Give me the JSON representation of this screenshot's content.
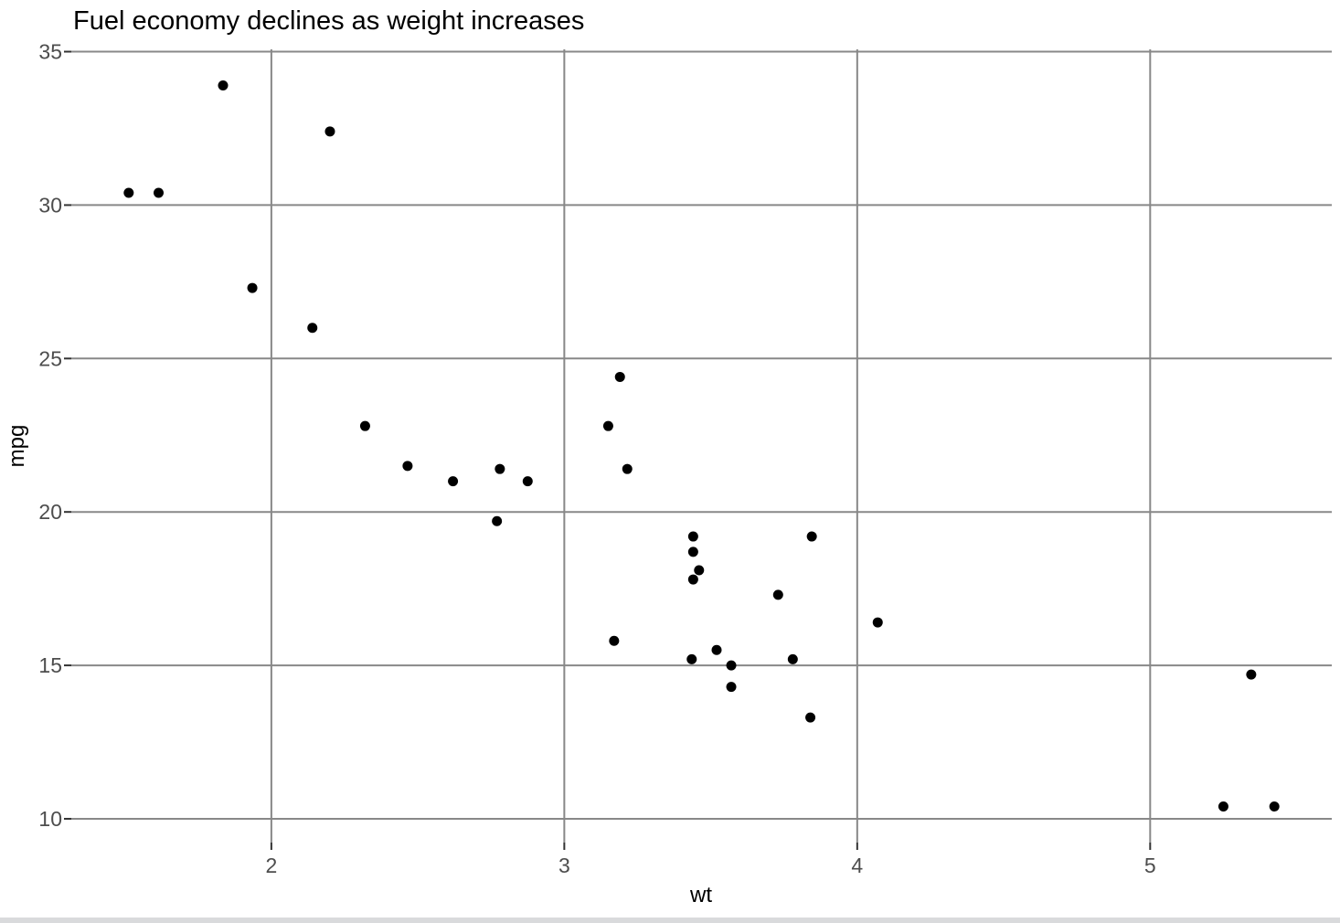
{
  "window": {
    "background": "#ffffff",
    "bottom_border_color": "#d9dadc"
  },
  "chart_data": {
    "type": "scatter",
    "title": "Fuel economy declines as weight increases",
    "xlabel": "wt",
    "ylabel": "mpg",
    "x_ticks": [
      2,
      3,
      4,
      5
    ],
    "y_ticks": [
      10,
      15,
      20,
      25,
      30,
      35
    ],
    "xlim": [
      1.317,
      5.62
    ],
    "ylim": [
      9.225,
      35.075
    ],
    "grid": true,
    "legend": "none",
    "point_color": "#000000",
    "point_radius": 5.5,
    "grid_color": "#888888",
    "tick_color": "#333333",
    "tick_label_color": "#4d4d4d",
    "title_color": "#000000",
    "points": [
      [
        2.62,
        21.0
      ],
      [
        2.875,
        21.0
      ],
      [
        2.32,
        22.8
      ],
      [
        3.215,
        21.4
      ],
      [
        3.44,
        18.7
      ],
      [
        3.46,
        18.1
      ],
      [
        3.57,
        14.3
      ],
      [
        3.19,
        24.4
      ],
      [
        3.15,
        22.8
      ],
      [
        3.44,
        19.2
      ],
      [
        3.44,
        17.8
      ],
      [
        4.07,
        16.4
      ],
      [
        3.73,
        17.3
      ],
      [
        3.78,
        15.2
      ],
      [
        5.25,
        10.4
      ],
      [
        5.424,
        10.4
      ],
      [
        5.345,
        14.7
      ],
      [
        2.2,
        32.4
      ],
      [
        1.615,
        30.4
      ],
      [
        1.835,
        33.9
      ],
      [
        2.465,
        21.5
      ],
      [
        3.52,
        15.5
      ],
      [
        3.435,
        15.2
      ],
      [
        3.84,
        13.3
      ],
      [
        3.845,
        19.2
      ],
      [
        1.935,
        27.3
      ],
      [
        2.14,
        26.0
      ],
      [
        1.513,
        30.4
      ],
      [
        3.17,
        15.8
      ],
      [
        2.77,
        19.7
      ],
      [
        3.57,
        15.0
      ],
      [
        2.78,
        21.4
      ]
    ]
  }
}
